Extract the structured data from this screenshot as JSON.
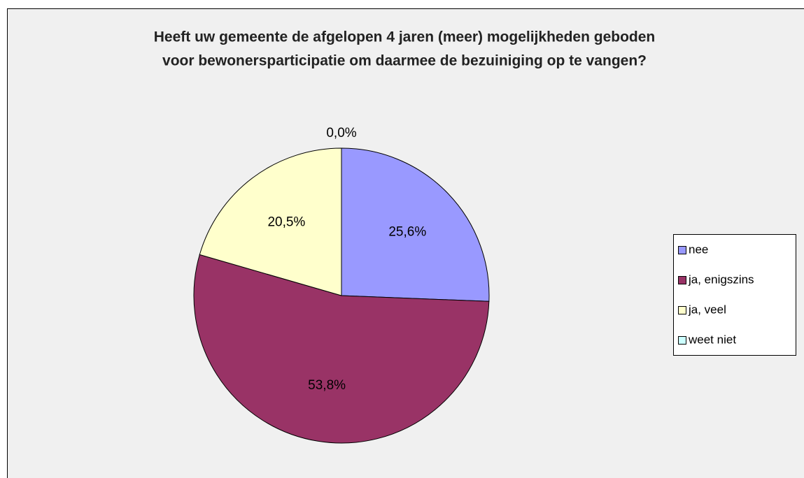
{
  "chart_data": {
    "type": "pie",
    "title": [
      "Heeft uw gemeente de afgelopen 4 jaren (meer) mogelijkheden geboden",
      "voor bewonersparticipatie om daarmee de bezuiniging op te vangen?"
    ],
    "categories": [
      "nee",
      "ja, enigszins",
      "ja, veel",
      "weet niet"
    ],
    "values": [
      25.6,
      53.8,
      20.5,
      0.0
    ],
    "value_labels": [
      "25,6%",
      "53,8%",
      "20,5%",
      "0,0%"
    ],
    "colors": [
      "#9999ff",
      "#993366",
      "#ffffcc",
      "#ccffff"
    ],
    "legend": "right"
  }
}
